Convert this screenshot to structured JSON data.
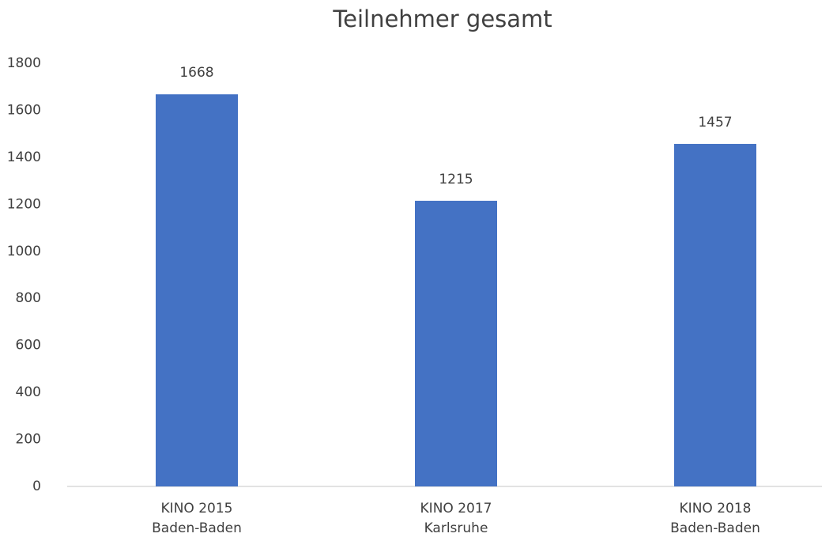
{
  "chart_data": {
    "type": "bar",
    "title": "Teilnehmer gesamt",
    "categories": [
      [
        "KINO 2015",
        "Baden-Baden"
      ],
      [
        "KINO 2017",
        "Karlsruhe"
      ],
      [
        "KINO 2018",
        "Baden-Baden"
      ]
    ],
    "values": [
      1668,
      1215,
      1457
    ],
    "color": "#4472c4",
    "ylim": [
      0,
      1800
    ],
    "yticks": [
      0,
      200,
      400,
      600,
      800,
      1000,
      1200,
      1400,
      1600,
      1800
    ],
    "grid": false
  }
}
